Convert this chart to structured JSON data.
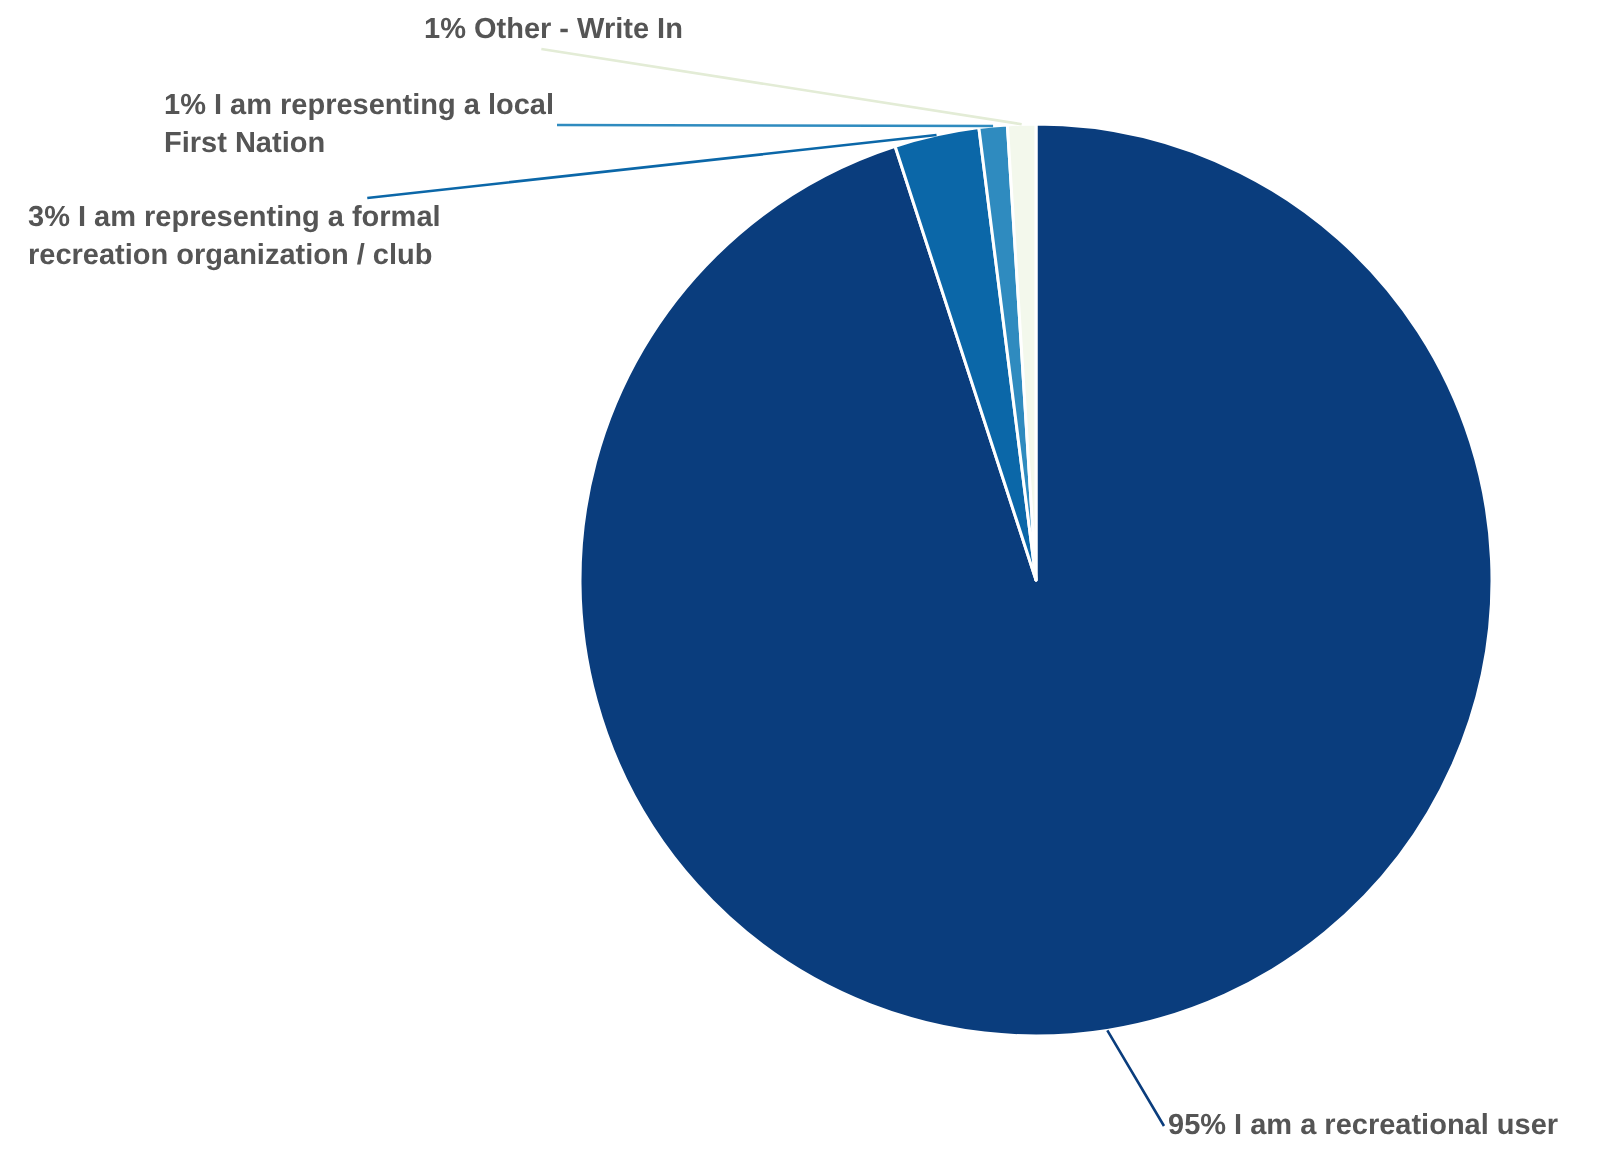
{
  "chart_data": {
    "type": "pie",
    "categories": [
      "I am a recreational user",
      "I am representing a formal recreation organization / club",
      "I am representing a local First Nation",
      "Other - Write In"
    ],
    "values": [
      95,
      3,
      1,
      1
    ],
    "value_labels": [
      "95%",
      "3%",
      "1%",
      "1%"
    ],
    "colors": [
      "#0a3d7d",
      "#0b67a8",
      "#2f8bbf",
      "#f3f8ec"
    ],
    "legend": false
  }
}
